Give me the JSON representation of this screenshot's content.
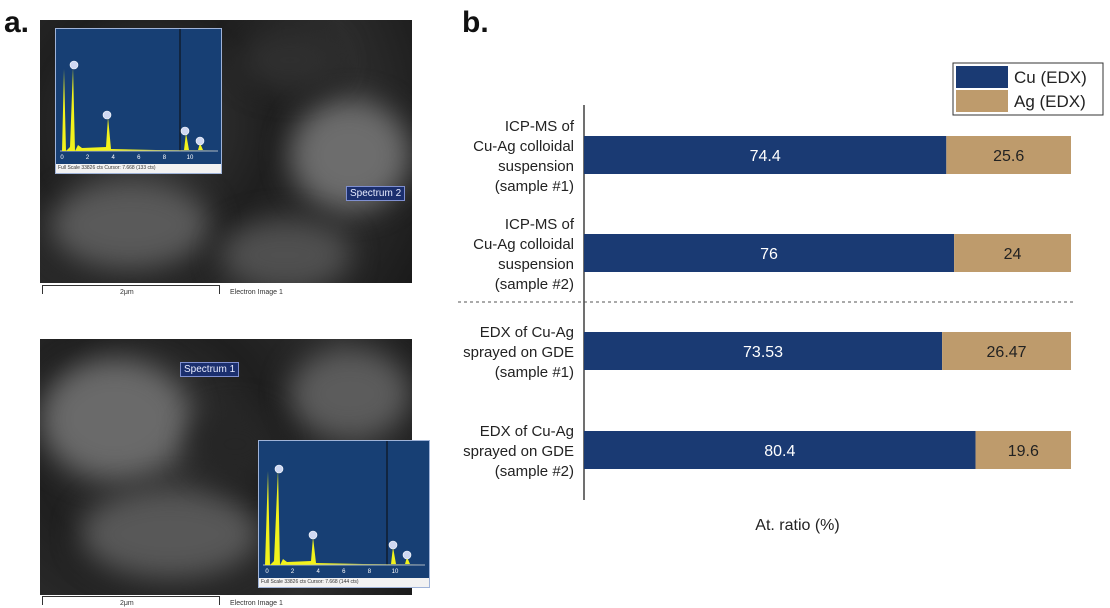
{
  "panel_a": {
    "label": "a.",
    "images": [
      {
        "spectrum_tag": "Spectrum 2",
        "scale_label": "2μm",
        "image_label": "Electron Image 1",
        "inset_footer": "Full Scale 33826 cts Cursor: 7.668  (133 cts)",
        "inset_ticks": [
          "0",
          "2",
          "4",
          "6",
          "8",
          "10"
        ]
      },
      {
        "spectrum_tag": "Spectrum 1",
        "scale_label": "2μm",
        "image_label": "Electron Image 1",
        "inset_footer": "Full Scale 33826 cts Cursor: 7.668  (144 cts)",
        "inset_ticks": [
          "0",
          "2",
          "4",
          "6",
          "8",
          "10"
        ]
      }
    ]
  },
  "panel_b": {
    "label": "b."
  },
  "chart_data": {
    "type": "bar",
    "orientation": "horizontal",
    "stacked": true,
    "categories": [
      [
        "ICP-MS of",
        "Cu-Ag colloidal",
        "suspension",
        "(sample #1)"
      ],
      [
        "ICP-MS of",
        "Cu-Ag colloidal",
        "suspension",
        "(sample #2)"
      ],
      [
        "EDX of Cu-Ag",
        "sprayed on GDE",
        "(sample #1)"
      ],
      [
        "EDX of Cu-Ag",
        "sprayed on GDE",
        "(sample #2)"
      ]
    ],
    "series": [
      {
        "name": "Cu (EDX)",
        "color": "#1a3a73",
        "values": [
          74.4,
          76,
          73.53,
          80.4
        ],
        "labels": [
          "74.4",
          "76",
          "73.53",
          "80.4"
        ]
      },
      {
        "name": "Ag (EDX)",
        "color": "#be9b6c",
        "values": [
          25.6,
          24,
          26.47,
          19.6
        ],
        "labels": [
          "25.6",
          "24",
          "26.47",
          "19.6"
        ]
      }
    ],
    "xlabel": "At. ratio (%)",
    "xlim": [
      0,
      100
    ],
    "grid": false,
    "legend": "top-right",
    "divider_after_category": 1
  }
}
